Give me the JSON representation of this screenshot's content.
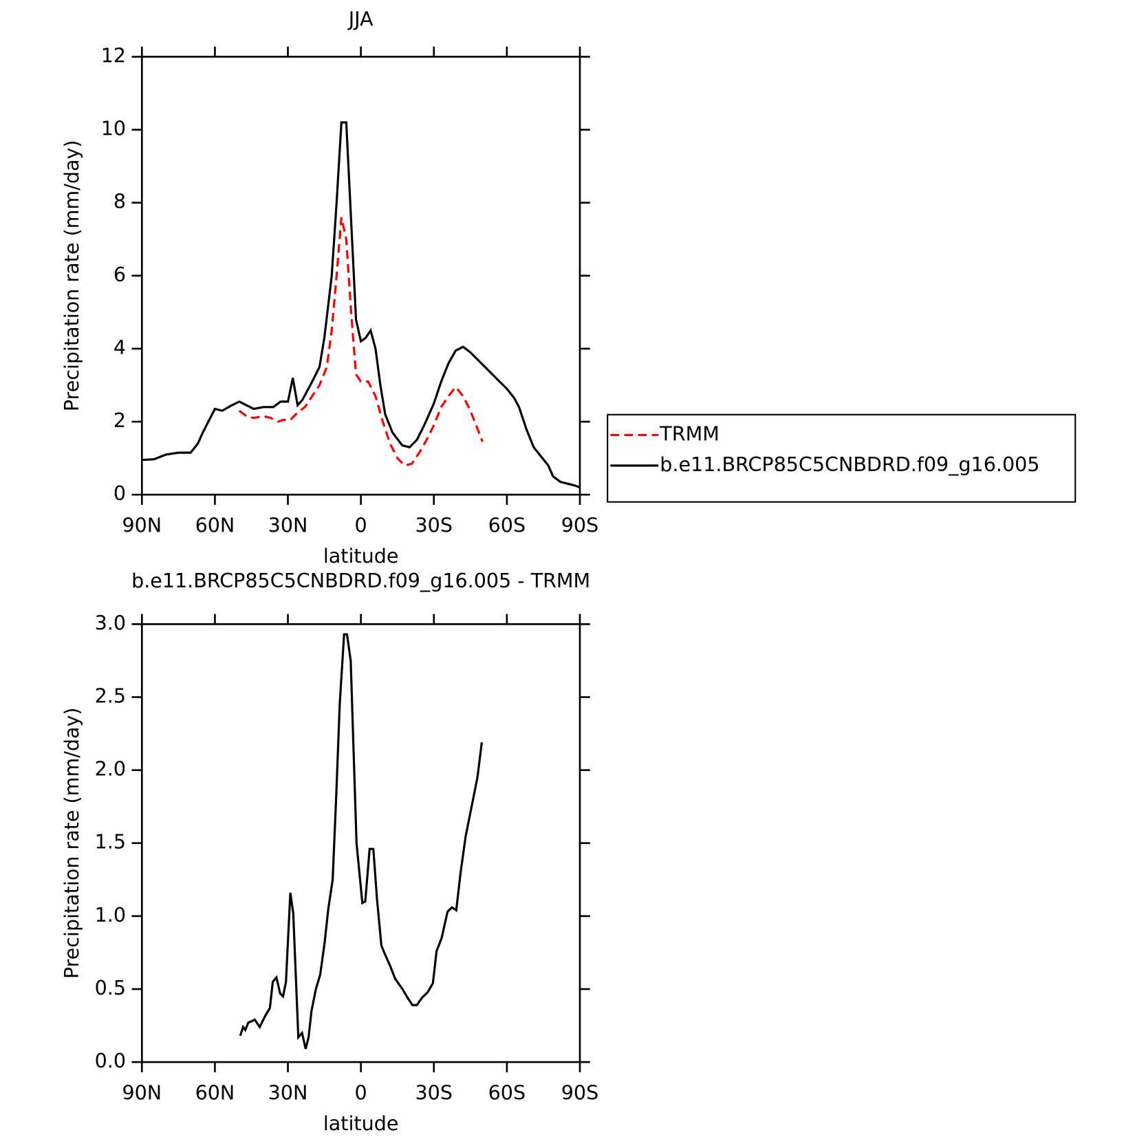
{
  "chart_data": [
    {
      "type": "line",
      "title": "JJA",
      "xlabel": "latitude",
      "ylabel": "Precipitation rate (mm/day)",
      "xlim": [
        90,
        -90
      ],
      "xticks": [
        {
          "value": 90,
          "label": "90N"
        },
        {
          "value": 60,
          "label": "60N"
        },
        {
          "value": 30,
          "label": "30N"
        },
        0,
        {
          "value": -30,
          "label": "30S"
        },
        {
          "value": -60,
          "label": "60S"
        },
        {
          "value": -90,
          "label": "90S"
        }
      ],
      "ylim": [
        0,
        12
      ],
      "yticks": [
        0,
        2,
        4,
        6,
        8,
        10,
        12
      ],
      "legend": "right",
      "series": [
        {
          "name": "TRMM",
          "color": "#ff0000",
          "linestyle": "dashed",
          "x": [
            50,
            47,
            44,
            40,
            37,
            34,
            32,
            29,
            26,
            23,
            20,
            17,
            14,
            12,
            10,
            8,
            6,
            4,
            2,
            0,
            -3,
            -6,
            -9,
            -12,
            -15,
            -18,
            -21,
            -24,
            -27,
            -30,
            -33,
            -36,
            -39,
            -42,
            -45,
            -48,
            -50
          ],
          "values": [
            2.3,
            2.15,
            2.1,
            2.15,
            2.1,
            2.0,
            2.05,
            2.05,
            2.25,
            2.4,
            2.7,
            3.0,
            3.5,
            4.5,
            6.0,
            7.6,
            7.0,
            5.0,
            3.3,
            3.1,
            3.1,
            2.7,
            2.0,
            1.4,
            1.0,
            0.8,
            0.85,
            1.15,
            1.5,
            1.9,
            2.4,
            2.7,
            2.95,
            2.7,
            2.3,
            1.8,
            1.45
          ]
        },
        {
          "name": "b.e11.BRCP85C5CNBDRD.f09_g16.005",
          "color": "#000000",
          "linestyle": "solid",
          "x": [
            90,
            85,
            80,
            75,
            70,
            67,
            65,
            60,
            57,
            53,
            50,
            47,
            44,
            40,
            36,
            33,
            30,
            28,
            26,
            24,
            20,
            17,
            15,
            12,
            10,
            8,
            6,
            4,
            2,
            0,
            -2,
            -4,
            -6,
            -8,
            -10,
            -13,
            -17,
            -20,
            -23,
            -26,
            -30,
            -33,
            -36,
            -39,
            -42,
            -45,
            -48,
            -51,
            -54,
            -57,
            -60,
            -63,
            -65,
            -68,
            -71,
            -74,
            -77,
            -79,
            -82,
            -85,
            -88,
            -90
          ],
          "values": [
            0.95,
            0.97,
            1.1,
            1.15,
            1.15,
            1.4,
            1.7,
            2.35,
            2.3,
            2.45,
            2.55,
            2.45,
            2.35,
            2.4,
            2.4,
            2.55,
            2.55,
            3.2,
            2.45,
            2.6,
            3.1,
            3.5,
            4.3,
            6.0,
            8.0,
            10.2,
            10.2,
            7.5,
            4.8,
            4.2,
            4.3,
            4.5,
            4.0,
            3.0,
            2.2,
            1.7,
            1.35,
            1.3,
            1.5,
            1.9,
            2.5,
            3.1,
            3.6,
            3.95,
            4.05,
            3.9,
            3.7,
            3.5,
            3.3,
            3.1,
            2.9,
            2.65,
            2.4,
            1.8,
            1.3,
            1.05,
            0.8,
            0.5,
            0.35,
            0.3,
            0.25,
            0.2
          ]
        }
      ]
    },
    {
      "type": "line",
      "title": "b.e11.BRCP85C5CNBDRD.f09_g16.005 - TRMM",
      "xlabel": "latitude",
      "ylabel": "Precipitation rate (mm/day)",
      "xlim": [
        90,
        -90
      ],
      "xticks": [
        {
          "value": 90,
          "label": "90N"
        },
        {
          "value": 60,
          "label": "60N"
        },
        {
          "value": 30,
          "label": "30N"
        },
        0,
        {
          "value": -30,
          "label": "30S"
        },
        {
          "value": -60,
          "label": "60S"
        },
        {
          "value": -90,
          "label": "90S"
        }
      ],
      "ylim": [
        0,
        3
      ],
      "yticks": [
        {
          "value": 0,
          "label": "0.0"
        },
        0.5,
        {
          "value": 1,
          "label": "1.0"
        },
        1.5,
        {
          "value": 2,
          "label": "2.0"
        },
        2.5,
        {
          "value": 3,
          "label": "3.0"
        }
      ],
      "series": [
        {
          "color": "#000000",
          "linestyle": "solid",
          "x": [
            49.6,
            48.4,
            47.5,
            46.3,
            43.6,
            41.6,
            39.2,
            37.4,
            36.2,
            34.7,
            33.2,
            32,
            30.8,
            29,
            27.8,
            25.7,
            24.2,
            22.7,
            21.5,
            20.3,
            18.5,
            16.7,
            14.9,
            13.4,
            11.6,
            10.2,
            8.7,
            6.9,
            5.7,
            4.2,
            1.8,
            -0.6,
            -1.8,
            -3.6,
            -5.1,
            -6.6,
            -8.4,
            -9.6,
            -12,
            -14.1,
            -17.1,
            -19.2,
            -21.2,
            -23,
            -25.1,
            -27.5,
            -29.6,
            -31.1,
            -33.2,
            -35.6,
            -37.4,
            -39.2,
            -41,
            -43.1,
            -45.5,
            -47.9,
            -49.7
          ],
          "values": [
            0.18,
            0.24,
            0.22,
            0.27,
            0.29,
            0.24,
            0.32,
            0.37,
            0.55,
            0.58,
            0.47,
            0.45,
            0.55,
            1.16,
            1.02,
            0.17,
            0.2,
            0.09,
            0.17,
            0.35,
            0.5,
            0.6,
            0.82,
            1.05,
            1.25,
            1.8,
            2.45,
            2.93,
            2.93,
            2.75,
            1.5,
            1.09,
            1.1,
            1.46,
            1.46,
            1.12,
            0.8,
            0.75,
            0.66,
            0.57,
            0.5,
            0.44,
            0.39,
            0.39,
            0.44,
            0.48,
            0.54,
            0.76,
            0.85,
            1.03,
            1.06,
            1.04,
            1.3,
            1.55,
            1.75,
            1.95,
            2.19
          ]
        }
      ]
    }
  ]
}
